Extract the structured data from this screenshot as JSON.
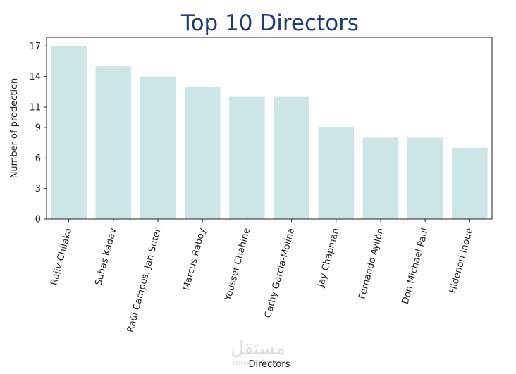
{
  "chart_data": {
    "type": "bar",
    "title": "Top 10 Directors",
    "xlabel": "Directors",
    "ylabel": "Number of prodection",
    "categories": [
      "Rajiv Chilaka",
      "Suhas Kadav",
      "Raúl Campos, Jan Suter",
      "Marcus Raboy",
      "Youssef Chahine",
      "Cathy Garcia-Molina",
      "Jay Chapman",
      "Fernando Ayllón",
      "Don Michael Paul",
      "Hidenori Inoue"
    ],
    "values": [
      17,
      15,
      14,
      13,
      12,
      12,
      9,
      8,
      8,
      7
    ],
    "yticks": [
      0,
      3,
      6,
      9,
      11,
      14,
      17
    ],
    "ylim": [
      0,
      17.85
    ],
    "grid": false,
    "bar_color": "#cce6e8",
    "title_color": "#1f3f73"
  },
  "watermark": {
    "arabic": "مستقل",
    "latin": "mostaql.com"
  }
}
